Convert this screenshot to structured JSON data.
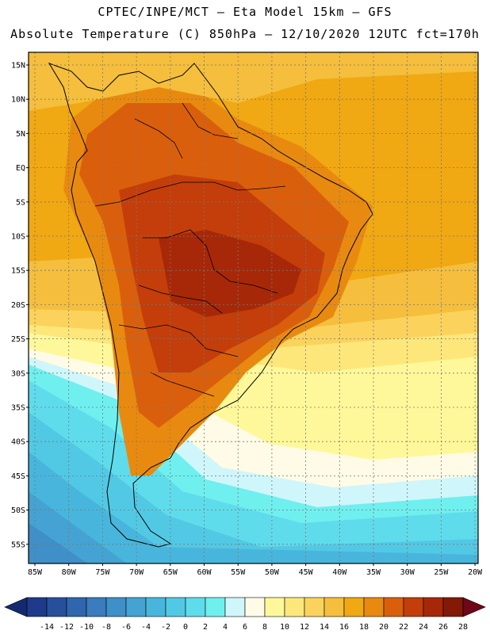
{
  "header": {
    "line1": "CPTEC/INPE/MCT –  Eta Model 15km – GFS",
    "line2": "Absolute Temperature (C) 850hPa – 12/10/2020 12UTC fct=170h"
  },
  "axes": {
    "lat_labels": [
      "15N",
      "10N",
      "5N",
      "EQ",
      "5S",
      "10S",
      "15S",
      "20S",
      "25S",
      "30S",
      "35S",
      "40S",
      "45S",
      "50S",
      "55S"
    ],
    "lon_labels": [
      "85W",
      "80W",
      "75W",
      "70W",
      "65W",
      "60W",
      "55W",
      "50W",
      "45W",
      "40W",
      "35W",
      "30W",
      "25W",
      "20W"
    ]
  },
  "colorbar": {
    "labels": [
      "-14",
      "-12",
      "-10",
      "-8",
      "-6",
      "-4",
      "-2",
      "0",
      "2",
      "4",
      "6",
      "8",
      "10",
      "12",
      "14",
      "16",
      "18",
      "20",
      "22",
      "24",
      "26",
      "28"
    ],
    "colors": [
      "#1f3a8a",
      "#27509c",
      "#2f66ad",
      "#3a7cbe",
      "#3f8fc8",
      "#44a3d2",
      "#48b6dc",
      "#52c9e4",
      "#5fdcec",
      "#70efef",
      "#cff6fb",
      "#fffbe6",
      "#fef89a",
      "#fde77a",
      "#fbd35c",
      "#f5be3c",
      "#f0a813",
      "#e88a10",
      "#da5f0c",
      "#c33e0a",
      "#a72808",
      "#821a06"
    ],
    "under_color": "#142a70",
    "over_color": "#6e0717"
  },
  "map": {
    "field_colors": {
      "ocean_warm": "#f0a813",
      "warm_18": "#f5be3c",
      "warm_20": "#e88a10",
      "hot_22": "#da5f0c",
      "hot_24": "#c33e0a",
      "hot_26": "#a72808",
      "mild_16": "#fbd35c",
      "mild_14": "#fde77a",
      "mild_12": "#fef89a",
      "cool_8": "#fffbe6",
      "cool_6": "#cff6fb",
      "cool_4": "#70efef",
      "cold_2": "#5fdcec",
      "cold_0": "#52c9e4",
      "cold_m2": "#48b6dc",
      "cold_m4": "#44a3d2",
      "cold_m6": "#3f8fc8"
    }
  }
}
